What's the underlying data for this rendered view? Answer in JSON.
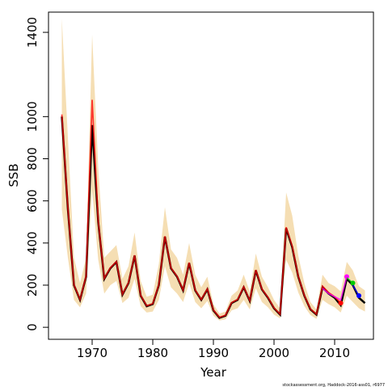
{
  "chart_data": {
    "type": "line",
    "xlabel": "Year",
    "ylabel": "SSB",
    "footnote": "stockassessment.org, Haddock-2016-ass01, r6977",
    "x": [
      1965,
      1966,
      1967,
      1968,
      1969,
      1970,
      1971,
      1972,
      1973,
      1974,
      1975,
      1976,
      1977,
      1978,
      1979,
      1980,
      1981,
      1982,
      1983,
      1984,
      1985,
      1986,
      1987,
      1988,
      1989,
      1990,
      1991,
      1992,
      1993,
      1994,
      1995,
      1996,
      1997,
      1998,
      1999,
      2000,
      2001,
      2002,
      2003,
      2004,
      2005,
      2006,
      2007,
      2008,
      2009,
      2010,
      2011,
      2012,
      2013,
      2014,
      2015
    ],
    "band": {
      "color": "#f5deb3",
      "upper": [
        1465,
        900,
        330,
        210,
        330,
        1390,
        760,
        330,
        360,
        390,
        230,
        290,
        450,
        220,
        145,
        155,
        300,
        570,
        370,
        330,
        250,
        400,
        250,
        190,
        240,
        110,
        65,
        75,
        150,
        175,
        250,
        170,
        350,
        240,
        190,
        130,
        90,
        640,
        530,
        340,
        210,
        120,
        85,
        250,
        210,
        195,
        170,
        310,
        270,
        195,
        175
      ],
      "lower": [
        560,
        330,
        130,
        95,
        160,
        650,
        320,
        160,
        200,
        220,
        115,
        140,
        230,
        100,
        70,
        75,
        130,
        290,
        190,
        160,
        120,
        210,
        120,
        90,
        125,
        55,
        32,
        38,
        80,
        90,
        130,
        85,
        185,
        120,
        95,
        60,
        42,
        320,
        260,
        165,
        100,
        58,
        40,
        130,
        110,
        95,
        70,
        150,
        120,
        90,
        75
      ]
    },
    "series": [
      {
        "color": "#000000",
        "values": [
          1000,
          560,
          200,
          130,
          240,
          960,
          500,
          230,
          280,
          310,
          155,
          210,
          340,
          150,
          100,
          110,
          200,
          430,
          280,
          240,
          175,
          305,
          175,
          130,
          180,
          80,
          45,
          55,
          115,
          130,
          190,
          125,
          270,
          180,
          140,
          90,
          60,
          470,
          380,
          240,
          150,
          85,
          60,
          190,
          160,
          140,
          105,
          230,
          200,
          140,
          115
        ]
      },
      {
        "color": "#ff0000",
        "values": [
          1010,
          565,
          202,
          132,
          242,
          1080,
          505,
          232,
          282,
          312,
          157,
          212,
          342,
          152,
          102,
          112,
          202,
          432,
          282,
          242,
          177,
          307,
          177,
          132,
          182,
          82,
          47,
          57,
          117,
          132,
          192,
          127,
          272,
          182,
          142,
          92,
          62,
          475,
          385,
          242,
          152,
          87,
          62,
          195,
          165,
          145,
          115,
          null,
          null,
          null,
          null
        ]
      },
      {
        "color": "#ff00ff",
        "values": [
          null,
          null,
          null,
          null,
          null,
          null,
          null,
          null,
          null,
          null,
          null,
          null,
          null,
          null,
          null,
          null,
          null,
          null,
          null,
          null,
          null,
          null,
          null,
          null,
          null,
          null,
          null,
          null,
          null,
          null,
          null,
          null,
          null,
          null,
          null,
          null,
          null,
          null,
          null,
          null,
          null,
          null,
          null,
          185,
          160,
          145,
          130,
          240,
          null,
          null,
          null
        ]
      },
      {
        "color": "#00cc00",
        "values": [
          null,
          null,
          null,
          null,
          null,
          null,
          null,
          null,
          null,
          null,
          null,
          null,
          null,
          null,
          null,
          null,
          null,
          null,
          null,
          null,
          null,
          null,
          null,
          null,
          null,
          null,
          null,
          null,
          null,
          null,
          null,
          null,
          null,
          null,
          null,
          null,
          null,
          null,
          null,
          null,
          null,
          null,
          null,
          null,
          null,
          null,
          null,
          235,
          210,
          null,
          null
        ]
      },
      {
        "color": "#0000ff",
        "values": [
          null,
          null,
          null,
          null,
          null,
          null,
          null,
          null,
          null,
          null,
          null,
          null,
          null,
          null,
          null,
          null,
          null,
          null,
          null,
          null,
          null,
          null,
          null,
          null,
          null,
          null,
          null,
          null,
          null,
          null,
          null,
          null,
          null,
          null,
          null,
          null,
          null,
          null,
          null,
          null,
          null,
          null,
          null,
          null,
          null,
          null,
          null,
          null,
          200,
          150,
          null
        ]
      }
    ],
    "xlim": [
      1962.8,
      2016.4
    ],
    "ylim": [
      -57,
      1496
    ],
    "xticks": [
      1970,
      1980,
      1990,
      2000,
      2010
    ],
    "yticks": [
      0,
      200,
      400,
      600,
      800,
      1000,
      1400
    ]
  }
}
